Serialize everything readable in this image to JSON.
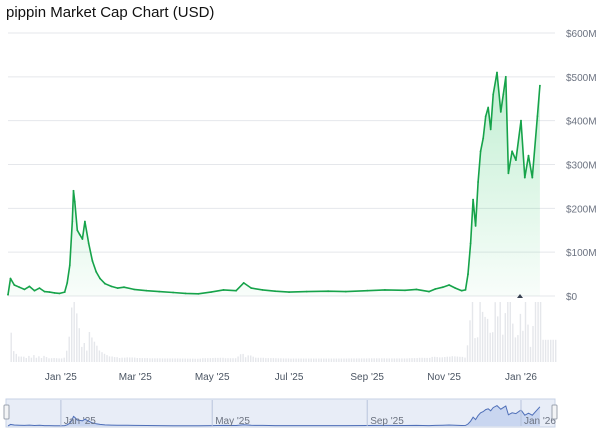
{
  "title": "pippin Market Cap Chart (USD)",
  "chart_data": {
    "type": "area",
    "title": "pippin Market Cap Chart (USD)",
    "y_unit": "USD",
    "ylim": [
      0,
      600000000
    ],
    "yticks": [
      {
        "value": 0,
        "label": "$0"
      },
      {
        "value": 100000000,
        "label": "$100M"
      },
      {
        "value": 200000000,
        "label": "$200M"
      },
      {
        "value": 300000000,
        "label": "$300M"
      },
      {
        "value": 400000000,
        "label": "$400M"
      },
      {
        "value": 500000000,
        "label": "$500M"
      },
      {
        "value": 600000000,
        "label": "$600M"
      }
    ],
    "xlim": [
      "2024-11-20",
      "2026-01-28"
    ],
    "xticks": [
      {
        "date": "2025-01-01",
        "label": "Jan '25"
      },
      {
        "date": "2025-03-01",
        "label": "Mar '25"
      },
      {
        "date": "2025-05-01",
        "label": "May '25"
      },
      {
        "date": "2025-07-01",
        "label": "Jul '25"
      },
      {
        "date": "2025-09-01",
        "label": "Sep '25"
      },
      {
        "date": "2025-11-01",
        "label": "Nov '25"
      },
      {
        "date": "2026-01-01",
        "label": "Jan '26"
      }
    ],
    "navigator_ticks": [
      {
        "date": "2025-01-01",
        "label": "Jan '25"
      },
      {
        "date": "2025-05-01",
        "label": "May '25"
      },
      {
        "date": "2025-09-01",
        "label": "Sep '25"
      },
      {
        "date": "2026-01-01",
        "label": "Jan '26"
      }
    ],
    "series": [
      {
        "color": "#16a34a",
        "points": [
          [
            "2024-11-20",
            3000000
          ],
          [
            "2024-11-22",
            40000000
          ],
          [
            "2024-11-25",
            25000000
          ],
          [
            "2024-11-29",
            20000000
          ],
          [
            "2024-12-03",
            15000000
          ],
          [
            "2024-12-07",
            22000000
          ],
          [
            "2024-12-11",
            12000000
          ],
          [
            "2024-12-15",
            18000000
          ],
          [
            "2024-12-19",
            10000000
          ],
          [
            "2024-12-23",
            9000000
          ],
          [
            "2024-12-27",
            7000000
          ],
          [
            "2024-12-31",
            6000000
          ],
          [
            "2025-01-04",
            9000000
          ],
          [
            "2025-01-06",
            30000000
          ],
          [
            "2025-01-08",
            70000000
          ],
          [
            "2025-01-10",
            170000000
          ],
          [
            "2025-01-11",
            240000000
          ],
          [
            "2025-01-12",
            215000000
          ],
          [
            "2025-01-14",
            150000000
          ],
          [
            "2025-01-16",
            140000000
          ],
          [
            "2025-01-18",
            130000000
          ],
          [
            "2025-01-20",
            170000000
          ],
          [
            "2025-01-23",
            120000000
          ],
          [
            "2025-01-26",
            80000000
          ],
          [
            "2025-01-29",
            55000000
          ],
          [
            "2025-02-01",
            40000000
          ],
          [
            "2025-02-05",
            28000000
          ],
          [
            "2025-02-10",
            22000000
          ],
          [
            "2025-02-15",
            18000000
          ],
          [
            "2025-02-20",
            20000000
          ],
          [
            "2025-02-28",
            15000000
          ],
          [
            "2025-03-10",
            12000000
          ],
          [
            "2025-03-20",
            10000000
          ],
          [
            "2025-03-31",
            8000000
          ],
          [
            "2025-04-10",
            6000000
          ],
          [
            "2025-04-20",
            5000000
          ],
          [
            "2025-04-30",
            9000000
          ],
          [
            "2025-05-10",
            14000000
          ],
          [
            "2025-05-20",
            12000000
          ],
          [
            "2025-05-26",
            30000000
          ],
          [
            "2025-06-01",
            18000000
          ],
          [
            "2025-06-10",
            14000000
          ],
          [
            "2025-06-20",
            11000000
          ],
          [
            "2025-07-01",
            9000000
          ],
          [
            "2025-07-15",
            10000000
          ],
          [
            "2025-08-01",
            11000000
          ],
          [
            "2025-08-15",
            10000000
          ],
          [
            "2025-09-01",
            12000000
          ],
          [
            "2025-09-15",
            14000000
          ],
          [
            "2025-10-01",
            13000000
          ],
          [
            "2025-10-10",
            15000000
          ],
          [
            "2025-10-20",
            10000000
          ],
          [
            "2025-10-25",
            16000000
          ],
          [
            "2025-10-31",
            20000000
          ],
          [
            "2025-11-05",
            25000000
          ],
          [
            "2025-11-10",
            18000000
          ],
          [
            "2025-11-15",
            12000000
          ],
          [
            "2025-11-18",
            14000000
          ],
          [
            "2025-11-20",
            50000000
          ],
          [
            "2025-11-22",
            120000000
          ],
          [
            "2025-11-24",
            220000000
          ],
          [
            "2025-11-26",
            160000000
          ],
          [
            "2025-11-28",
            260000000
          ],
          [
            "2025-11-30",
            330000000
          ],
          [
            "2025-12-02",
            360000000
          ],
          [
            "2025-12-04",
            410000000
          ],
          [
            "2025-12-06",
            430000000
          ],
          [
            "2025-12-08",
            380000000
          ],
          [
            "2025-12-10",
            460000000
          ],
          [
            "2025-12-13",
            510000000
          ],
          [
            "2025-12-16",
            420000000
          ],
          [
            "2025-12-18",
            460000000
          ],
          [
            "2025-12-20",
            500000000
          ],
          [
            "2025-12-22",
            280000000
          ],
          [
            "2025-12-25",
            330000000
          ],
          [
            "2025-12-28",
            310000000
          ],
          [
            "2026-01-01",
            400000000
          ],
          [
            "2026-01-04",
            270000000
          ],
          [
            "2026-01-07",
            320000000
          ],
          [
            "2026-01-10",
            270000000
          ],
          [
            "2026-01-14",
            410000000
          ],
          [
            "2026-01-16",
            480000000
          ]
        ]
      }
    ],
    "grid": true
  }
}
